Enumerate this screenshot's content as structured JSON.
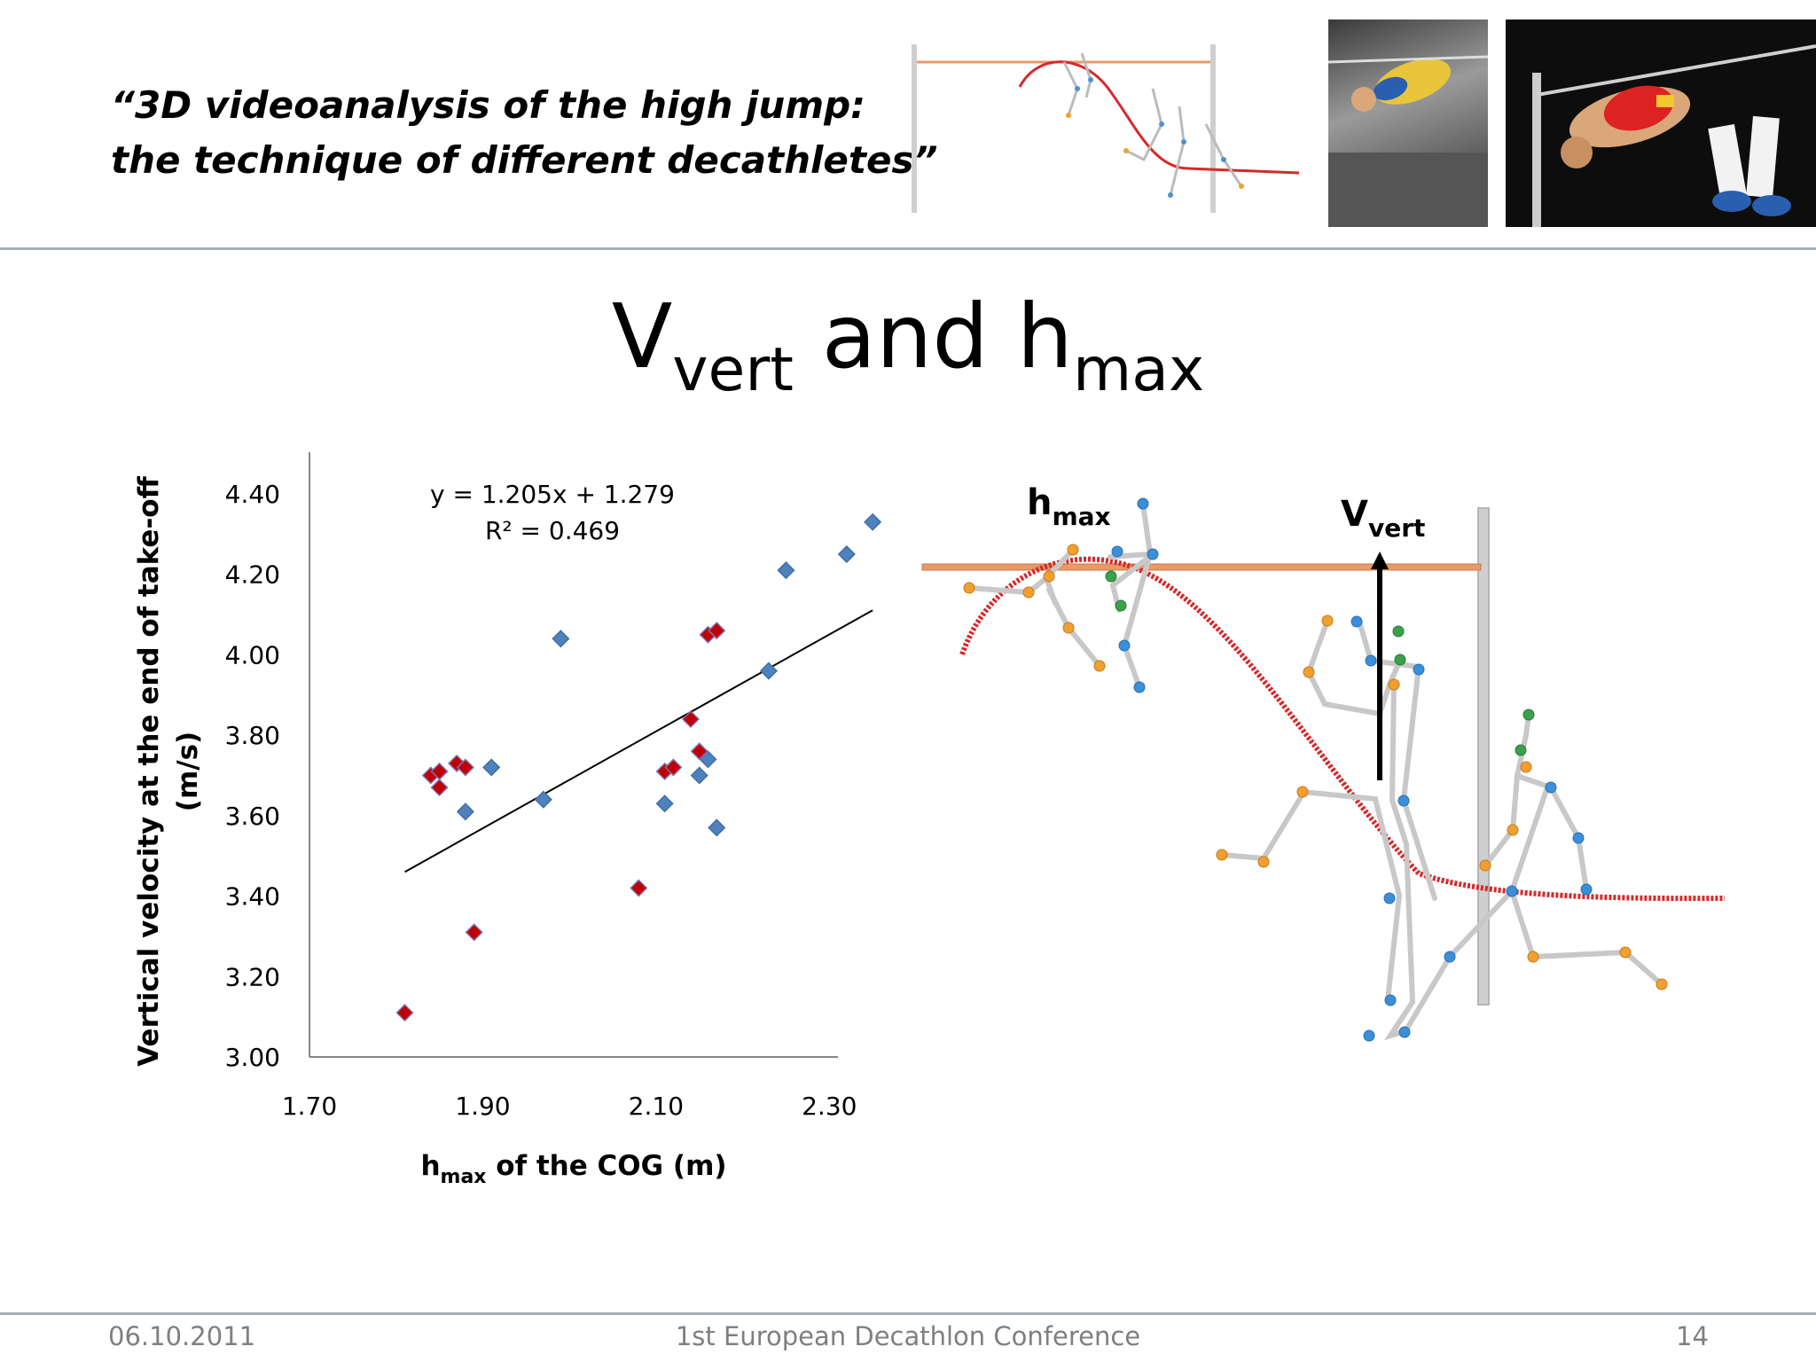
{
  "header": {
    "subtitle_line1": "“3D videoanalysis of the high jump:",
    "subtitle_line2": "the technique of different decathletes”"
  },
  "slide_title": {
    "v": "V",
    "v_sub": "vert",
    "and": " and h",
    "h_sub": "max"
  },
  "chart_data": {
    "type": "scatter",
    "title": "",
    "xlabel_main": "h",
    "xlabel_sub": "max",
    "xlabel_rest": " of the COG (m)",
    "ylabel_line1": "Vertical velocity at the end of take-off",
    "ylabel_line2": "(m/s)",
    "xlim": [
      1.7,
      2.4
    ],
    "ylim": [
      3.0,
      4.4
    ],
    "x_ticks": [
      "1.70",
      "1.90",
      "2.10",
      "2.30"
    ],
    "x_tick_values": [
      1.7,
      1.9,
      2.1,
      2.3
    ],
    "y_ticks": [
      "3.00",
      "3.20",
      "3.40",
      "3.60",
      "3.80",
      "4.00",
      "4.20",
      "4.40"
    ],
    "y_tick_values": [
      3.0,
      3.2,
      3.4,
      3.6,
      3.8,
      4.0,
      4.2,
      4.4
    ],
    "grid": false,
    "legend": "none",
    "series": [
      {
        "color": "#4f81bd",
        "marker": "diamond",
        "x": [
          1.88,
          1.91,
          1.97,
          1.99,
          2.11,
          2.15,
          2.16,
          2.17,
          2.23,
          2.25,
          2.32,
          2.35
        ],
        "y": [
          3.61,
          3.72,
          3.64,
          4.04,
          3.63,
          3.7,
          3.74,
          3.57,
          3.96,
          4.21,
          4.25,
          4.33
        ]
      },
      {
        "color": "#c00000",
        "marker": "diamond",
        "x": [
          1.81,
          1.84,
          1.85,
          1.85,
          1.87,
          1.88,
          1.89,
          2.08,
          2.11,
          2.12,
          2.14,
          2.15,
          2.16,
          2.17
        ],
        "y": [
          3.11,
          3.7,
          3.67,
          3.71,
          3.73,
          3.72,
          3.31,
          3.42,
          3.71,
          3.72,
          3.84,
          3.76,
          4.05,
          4.06
        ]
      }
    ],
    "trendline": {
      "slope": 1.205,
      "intercept": 1.279,
      "x_range": [
        1.81,
        2.35
      ],
      "color": "#000000"
    },
    "annotations": [
      "y = 1.205x + 1.279",
      "R² = 0.469"
    ]
  },
  "figure": {
    "label_h": "h",
    "label_h_sub": "max",
    "label_v": "V",
    "label_v_sub": "vert",
    "curve_color": "#d42a2a",
    "bar_color": "#e59a68"
  },
  "footer": {
    "date": "06.10.2011",
    "conference": "1st European Decathlon Conference",
    "page": "14"
  }
}
